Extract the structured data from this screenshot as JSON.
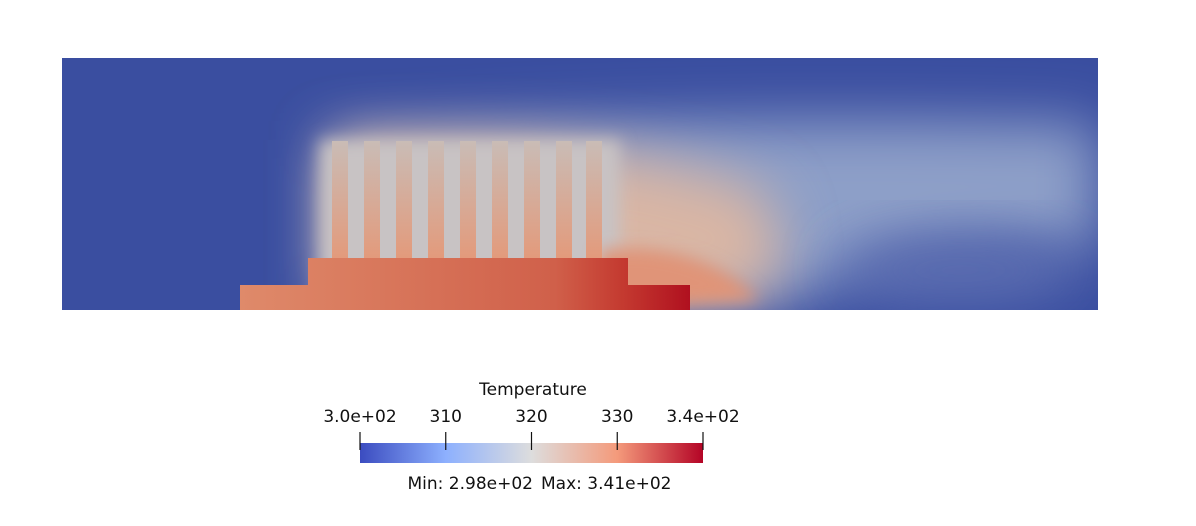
{
  "colorbar": {
    "title": "Temperature",
    "range": [
      300,
      340
    ],
    "ticks": [
      {
        "value": 300,
        "label": "3.0e+02"
      },
      310,
      320,
      330,
      {
        "value": 340,
        "label": "3.4e+02"
      }
    ],
    "min_label": "Min: 2.98e+02",
    "max_label": "Max: 3.41e+02"
  }
}
